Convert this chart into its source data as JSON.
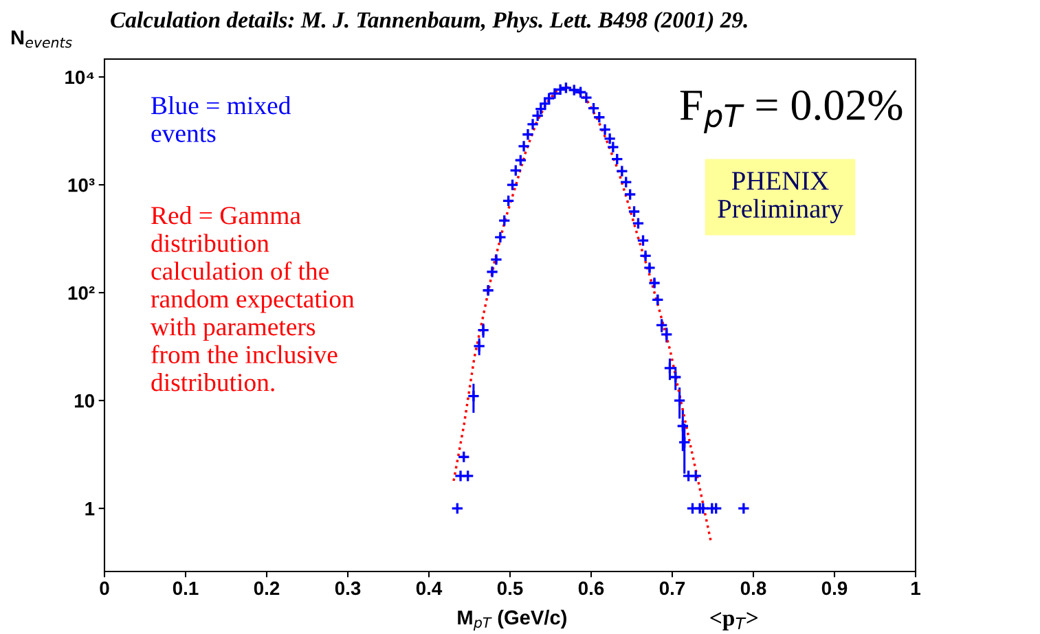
{
  "chart_data": {
    "type": "scatter",
    "title": "Calculation details: M. J. Tannenbaum, Phys. Lett. B498 (2001) 29.",
    "xlabel": "M$_{pT}$ (GeV/c)",
    "ylabel": "N$_{events}$",
    "log": "y",
    "xlim": [
      0,
      1
    ],
    "xticks": [
      0,
      0.1,
      0.2,
      0.3,
      0.4,
      0.5,
      0.6,
      0.7,
      0.8,
      0.9,
      1
    ],
    "ylim": [
      0.26,
      14650
    ],
    "yticks": [
      1,
      10,
      {
        "value": 100,
        "label": "10²"
      },
      {
        "value": 1000,
        "label": "10³"
      },
      {
        "value": 10000,
        "label": "10⁴"
      }
    ],
    "grid": false,
    "legend": false,
    "series": [
      {
        "color": "#0000ff",
        "marker": "cross",
        "x": [
          0.435,
          0.439,
          0.443,
          0.448,
          0.455,
          0.462,
          0.467,
          0.473,
          0.478,
          0.483,
          0.488,
          0.493,
          0.498,
          0.503,
          0.507,
          0.513,
          0.517,
          0.522,
          0.528,
          0.534,
          0.538,
          0.543,
          0.548,
          0.555,
          0.562,
          0.569,
          0.579,
          0.587,
          0.594,
          0.603,
          0.61,
          0.617,
          0.623,
          0.627,
          0.632,
          0.638,
          0.643,
          0.648,
          0.653,
          0.658,
          0.664,
          0.667,
          0.672,
          0.678,
          0.682,
          0.687,
          0.693,
          0.697,
          0.704,
          0.709,
          0.713,
          0.715,
          0.72,
          0.725,
          0.729,
          0.734,
          0.738,
          0.749,
          0.754,
          0.788
        ],
        "values": [
          1,
          2,
          3,
          2,
          11,
          32,
          45,
          105,
          156,
          203,
          327,
          466,
          711,
          1000,
          1360,
          1690,
          2280,
          2930,
          3640,
          4380,
          5050,
          5660,
          6340,
          7020,
          7650,
          7930,
          7570,
          7220,
          6440,
          5130,
          4230,
          3250,
          2680,
          2240,
          1730,
          1340,
          1060,
          815,
          565,
          440,
          305,
          220,
          170,
          123,
          86,
          50,
          41,
          20,
          16.5,
          10,
          5.8,
          4.1,
          2,
          1,
          2,
          1,
          1,
          1,
          1,
          1
        ],
        "errors": [
          null,
          null,
          null,
          null,
          3.3,
          5.7,
          6.7,
          10,
          12,
          14,
          18,
          22,
          null,
          null,
          null,
          null,
          null,
          null,
          null,
          null,
          null,
          null,
          null,
          null,
          null,
          null,
          null,
          null,
          null,
          null,
          null,
          null,
          null,
          null,
          null,
          null,
          null,
          null,
          null,
          null,
          null,
          15,
          13,
          11,
          9,
          7,
          6.4,
          4.5,
          4,
          3.2,
          2.4,
          2,
          null,
          null,
          null,
          null,
          null,
          null,
          null,
          null
        ]
      },
      {
        "type": "line",
        "color": "#ff0000",
        "line_style": "dotted",
        "marker": "none",
        "x": [
          0.4305,
          0.443,
          0.456,
          0.4686,
          0.481,
          0.494,
          0.507,
          0.5195,
          0.532,
          0.545,
          0.5576,
          0.5703,
          0.583,
          0.5958,
          0.6085,
          0.621,
          0.6339,
          0.6466,
          0.659,
          0.672,
          0.685,
          0.6975,
          0.71,
          0.7229,
          0.7356,
          0.748
        ],
        "values": [
          1.8,
          5.8,
          25,
          70,
          196,
          473,
          982,
          2045,
          3690,
          5730,
          7460,
          8020,
          7460,
          5900,
          3970,
          2375,
          1320,
          636,
          305,
          146,
          65,
          29,
          10.4,
          3.7,
          1.34,
          0.48
        ]
      }
    ],
    "annotations": [
      "Blue = mixed\nevents",
      "Red = Gamma\ndistribution\ncalculation of the\nrandom expectation\nwith parameters\nfrom the inclusive\ndistribution.",
      "F$_{pT}$ = 0.02%",
      "PHENIX\nPreliminary",
      "<p$_{T}$>"
    ]
  }
}
